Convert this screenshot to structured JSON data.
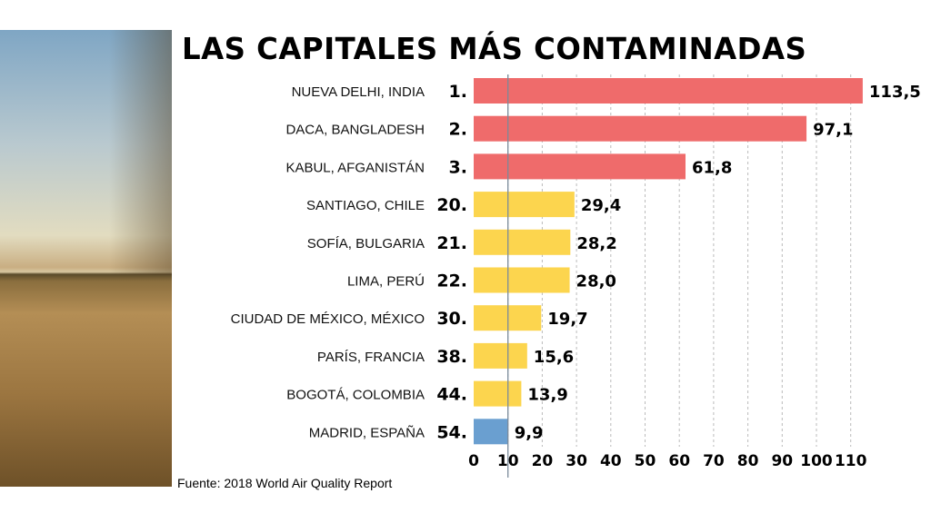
{
  "chart_data": {
    "type": "bar",
    "orientation": "horizontal",
    "title": "LAS CAPITALES MÁS CONTAMINADAS",
    "categories": [
      "NUEVA DELHI, INDIA",
      "DACA, BANGLADESH",
      "KABUL, AFGANISTÁN",
      "SANTIAGO, CHILE",
      "SOFÍA, BULGARIA",
      "LIMA, PERÚ",
      "CIUDAD DE MÉXICO, MÉXICO",
      "PARÍS, FRANCIA",
      "BOGOTÁ, COLOMBIA",
      "MADRID, ESPAÑA"
    ],
    "ranks": [
      "1.",
      "2.",
      "3.",
      "20.",
      "21.",
      "22.",
      "30.",
      "38.",
      "44.",
      "54."
    ],
    "values": [
      113.5,
      97.1,
      61.8,
      29.4,
      28.2,
      28.0,
      19.7,
      15.6,
      13.9,
      9.9
    ],
    "value_labels": [
      "113,5",
      "97,1",
      "61,8",
      "29,4",
      "28,2",
      "28,0",
      "19,7",
      "15,6",
      "13,9",
      "9,9"
    ],
    "bar_colors": [
      "#ef6b6b",
      "#ef6b6b",
      "#ef6b6b",
      "#fcd54e",
      "#fcd54e",
      "#fcd54e",
      "#fcd54e",
      "#fcd54e",
      "#fcd54e",
      "#6a9fd0"
    ],
    "xlim": [
      0,
      115
    ],
    "xticks": [
      0,
      10,
      20,
      30,
      40,
      50,
      60,
      70,
      80,
      90,
      100,
      110
    ],
    "reference_line": 10,
    "grid": "vertical dashed",
    "source": "Fuente: 2018 World Air Quality Report"
  }
}
